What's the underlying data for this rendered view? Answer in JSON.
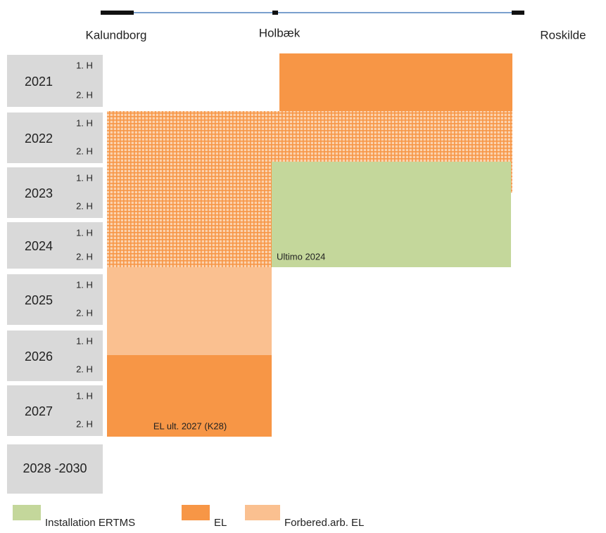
{
  "stations": [
    "Kalundborg",
    "Holbæk",
    "Roskilde"
  ],
  "years": [
    {
      "label": "2021",
      "halves": [
        "1. H",
        "2. H"
      ]
    },
    {
      "label": "2022",
      "halves": [
        "1. H",
        "2. H"
      ]
    },
    {
      "label": "2023",
      "halves": [
        "1. H",
        "2. H"
      ]
    },
    {
      "label": "2024",
      "halves": [
        "1. H",
        "2. H"
      ]
    },
    {
      "label": "2025",
      "halves": [
        "1. H",
        "2. H"
      ]
    },
    {
      "label": "2026",
      "halves": [
        "1. H",
        "2. H"
      ]
    },
    {
      "label": "2027",
      "halves": [
        "1. H",
        "2. H"
      ]
    },
    {
      "label": "2028 -2030"
    }
  ],
  "blocks": [
    {
      "label": "Ultimo 2024"
    },
    {
      "label": "EL ult. 2027 (K28)"
    }
  ],
  "legend": [
    "Installation ERTMS",
    "EL",
    "Forbered.arb. EL"
  ]
}
